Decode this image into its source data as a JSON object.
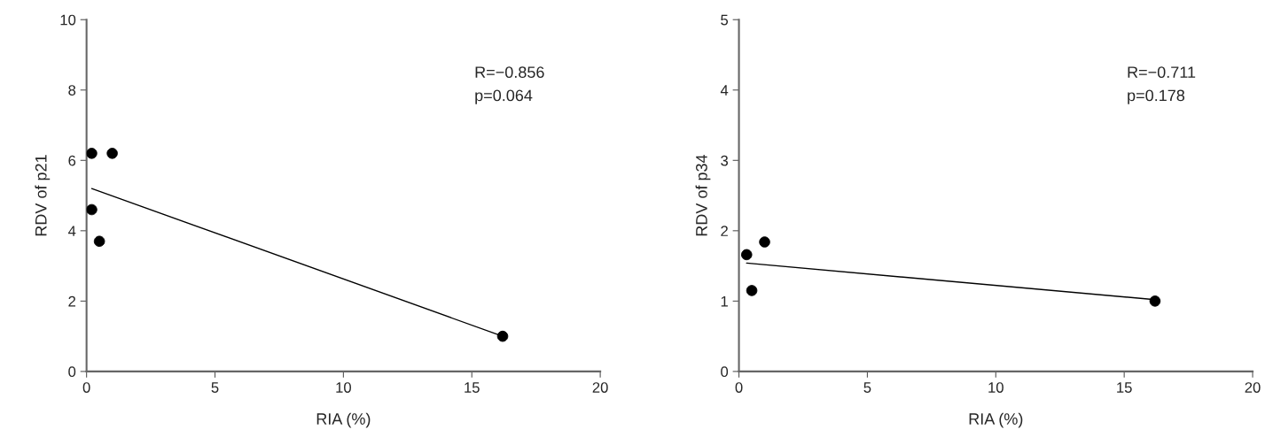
{
  "chart_data": [
    {
      "type": "scatter",
      "xlabel": "RIA (%)",
      "ylabel": "RDV of p21",
      "xlim": [
        0,
        20
      ],
      "ylim": [
        0,
        10
      ],
      "xticks": [
        0,
        5,
        10,
        15,
        20
      ],
      "yticks": [
        0,
        2,
        4,
        6,
        8,
        10
      ],
      "grid": false,
      "series": [
        {
          "marker": "circle",
          "color": "#000000",
          "x": [
            0.2,
            1.0,
            0.2,
            0.5,
            16.2
          ],
          "values": [
            6.2,
            6.2,
            4.6,
            3.7,
            1.0
          ]
        },
        {
          "type": "line",
          "color": "#000000",
          "x": [
            0.2,
            16.2
          ],
          "values": [
            5.2,
            1.0
          ]
        }
      ],
      "annotations": [
        "R=−0.856",
        "p=0.064"
      ]
    },
    {
      "type": "scatter",
      "xlabel": "RIA (%)",
      "ylabel": "RDV of p34",
      "xlim": [
        0,
        20
      ],
      "ylim": [
        0,
        5
      ],
      "xticks": [
        0,
        5,
        10,
        15,
        20
      ],
      "yticks": [
        0,
        1,
        2,
        3,
        4,
        5
      ],
      "grid": false,
      "series": [
        {
          "marker": "circle",
          "color": "#000000",
          "x": [
            0.3,
            1.0,
            0.5,
            16.2
          ],
          "values": [
            1.66,
            1.84,
            1.15,
            1.0
          ]
        },
        {
          "type": "line",
          "color": "#000000",
          "x": [
            0.3,
            16.2
          ],
          "values": [
            1.54,
            1.02
          ]
        }
      ],
      "annotations": [
        "R=−0.711",
        "p=0.178"
      ]
    }
  ]
}
